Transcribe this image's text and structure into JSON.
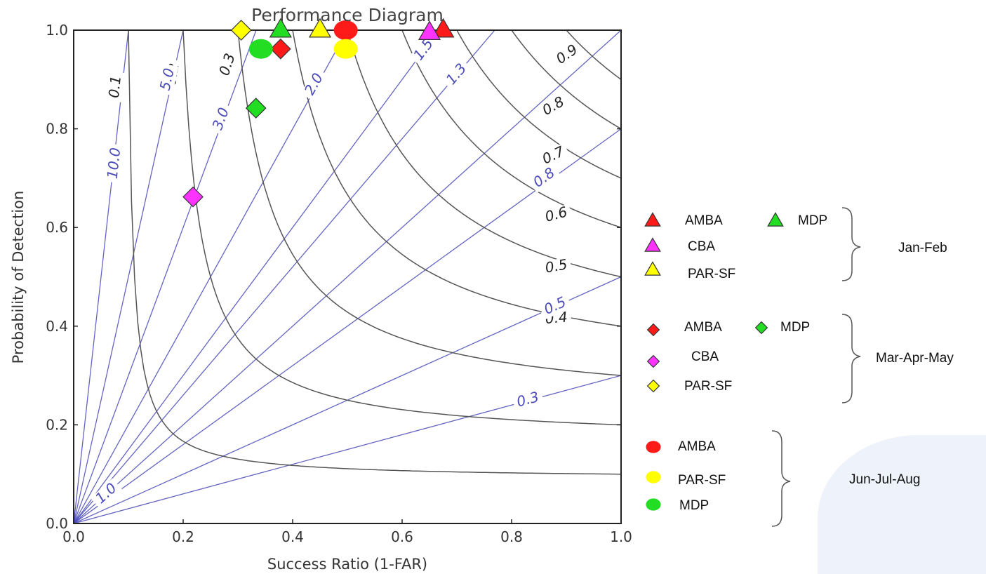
{
  "chart_data": {
    "type": "scatter",
    "title": "Performance Diagram",
    "xlabel": "Success Ratio (1-FAR)",
    "ylabel": "Probability of Detection",
    "xlim": [
      0,
      1
    ],
    "ylim": [
      0,
      1
    ],
    "xticks": [
      "0.0",
      "0.2",
      "0.4",
      "0.6",
      "0.8",
      "1.0"
    ],
    "yticks": [
      "0.0",
      "0.2",
      "0.4",
      "0.6",
      "0.8",
      "1.0"
    ],
    "csi_contours": [
      {
        "value": 0.1,
        "label": "0.1"
      },
      {
        "value": 0.2,
        "label": "0.2"
      },
      {
        "value": 0.3,
        "label": "0.3"
      },
      {
        "value": 0.4,
        "label": "0.4"
      },
      {
        "value": 0.5,
        "label": "0.5"
      },
      {
        "value": 0.6,
        "label": "0.6"
      },
      {
        "value": 0.7,
        "label": "0.7"
      },
      {
        "value": 0.8,
        "label": "0.8"
      },
      {
        "value": 0.9,
        "label": "0.9"
      }
    ],
    "bias_lines": [
      {
        "value": 10.0,
        "label": "10.0"
      },
      {
        "value": 5.0,
        "label": "5.0"
      },
      {
        "value": 3.0,
        "label": "3.0"
      },
      {
        "value": 2.0,
        "label": "2.0"
      },
      {
        "value": 1.5,
        "label": "1.5"
      },
      {
        "value": 1.3,
        "label": "1.3"
      },
      {
        "value": 1.0,
        "label": "1.0"
      },
      {
        "value": 0.8,
        "label": "0.8"
      },
      {
        "value": 0.5,
        "label": "0.5"
      },
      {
        "value": 0.3,
        "label": "0.3"
      }
    ],
    "series": [
      {
        "group": "Jan-Feb",
        "name": "AMBA",
        "marker": "triangle",
        "color": "#ff1a1a",
        "points": [
          [
            0.675,
            1.0
          ]
        ]
      },
      {
        "group": "Jan-Feb",
        "name": "CBA",
        "marker": "triangle",
        "color": "#ff33ff",
        "points": [
          [
            0.65,
            0.995
          ]
        ]
      },
      {
        "group": "Jan-Feb",
        "name": "PAR-SF",
        "marker": "triangle",
        "color": "#ffff00",
        "points": [
          [
            0.45,
            1.0
          ]
        ]
      },
      {
        "group": "Jan-Feb",
        "name": "MDP",
        "marker": "triangle",
        "color": "#22dd22",
        "points": [
          [
            0.378,
            1.0
          ]
        ]
      },
      {
        "group": "Mar-Apr-May",
        "name": "AMBA",
        "marker": "diamond",
        "color": "#ff1a1a",
        "points": [
          [
            0.378,
            0.962
          ]
        ]
      },
      {
        "group": "Mar-Apr-May",
        "name": "CBA",
        "marker": "diamond",
        "color": "#ff33ff",
        "points": [
          [
            0.218,
            0.662
          ]
        ]
      },
      {
        "group": "Mar-Apr-May",
        "name": "PAR-SF",
        "marker": "diamond",
        "color": "#ffff00",
        "points": [
          [
            0.306,
            1.0
          ]
        ]
      },
      {
        "group": "Mar-Apr-May",
        "name": "MDP",
        "marker": "diamond",
        "color": "#22dd22",
        "points": [
          [
            0.333,
            0.842
          ]
        ]
      },
      {
        "group": "Jun-Jul-Aug",
        "name": "AMBA",
        "marker": "circle",
        "color": "#ff1a1a",
        "points": [
          [
            0.497,
            1.0
          ]
        ]
      },
      {
        "group": "Jun-Jul-Aug",
        "name": "PAR-SF",
        "marker": "circle",
        "color": "#ffff00",
        "points": [
          [
            0.497,
            0.962
          ]
        ]
      },
      {
        "group": "Jun-Jul-Aug",
        "name": "MDP",
        "marker": "circle",
        "color": "#22dd22",
        "points": [
          [
            0.342,
            0.962
          ]
        ]
      }
    ],
    "legend": {
      "placement": "right",
      "groups": [
        {
          "label": "Jan-Feb",
          "entries": [
            "AMBA",
            "MDP",
            "CBA",
            "PAR-SF"
          ]
        },
        {
          "label": "Mar-Apr-May",
          "entries": [
            "AMBA",
            "MDP",
            "CBA",
            "PAR-SF"
          ]
        },
        {
          "label": "Jun-Jul-Aug",
          "entries": [
            "AMBA",
            "PAR-SF",
            "MDP"
          ]
        }
      ]
    },
    "colors": {
      "csi": "#555555",
      "bias": "#4a4ab8",
      "axes": "#222222"
    }
  }
}
